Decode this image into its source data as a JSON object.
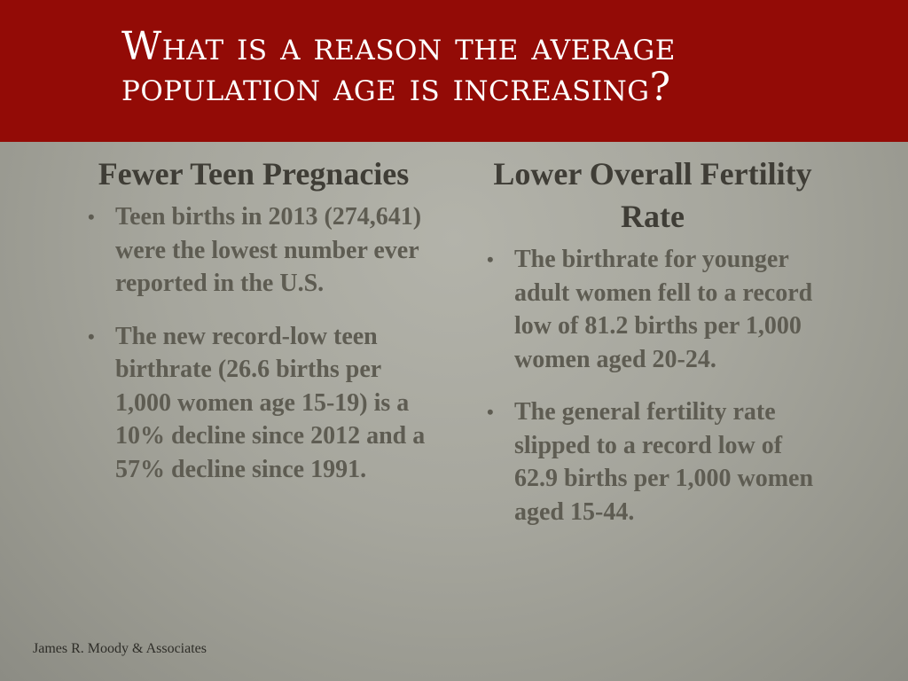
{
  "slide": {
    "title": "What is a reason the average population age is increasing?"
  },
  "left_column": {
    "heading": "Fewer Teen Pregnacies",
    "bullets": [
      "Teen births in 2013 (274,641) were the lowest number ever reported in the U.S.",
      "The new record-low teen birthrate (26.6 births per 1,000 women age 15-19) is a 10% decline since 2012 and a 57% decline since 1991."
    ]
  },
  "right_column": {
    "heading": "Lower Overall Fertility Rate",
    "bullets": [
      "The birthrate for younger adult women fell to a record low of 81.2 births per 1,000 women aged 20-24.",
      "The general fertility rate slipped to a record low of 62.9 births per 1,000 women aged 15-44."
    ]
  },
  "footer": {
    "credit": "James R. Moody & Associates"
  },
  "colors": {
    "title_bar": "#930b06",
    "title_text": "#ffffff",
    "heading_text": "#3f3d36",
    "bullet_text": "#5e5c52",
    "background": "#a6a69d"
  },
  "icons": {
    "bullet": "•"
  }
}
